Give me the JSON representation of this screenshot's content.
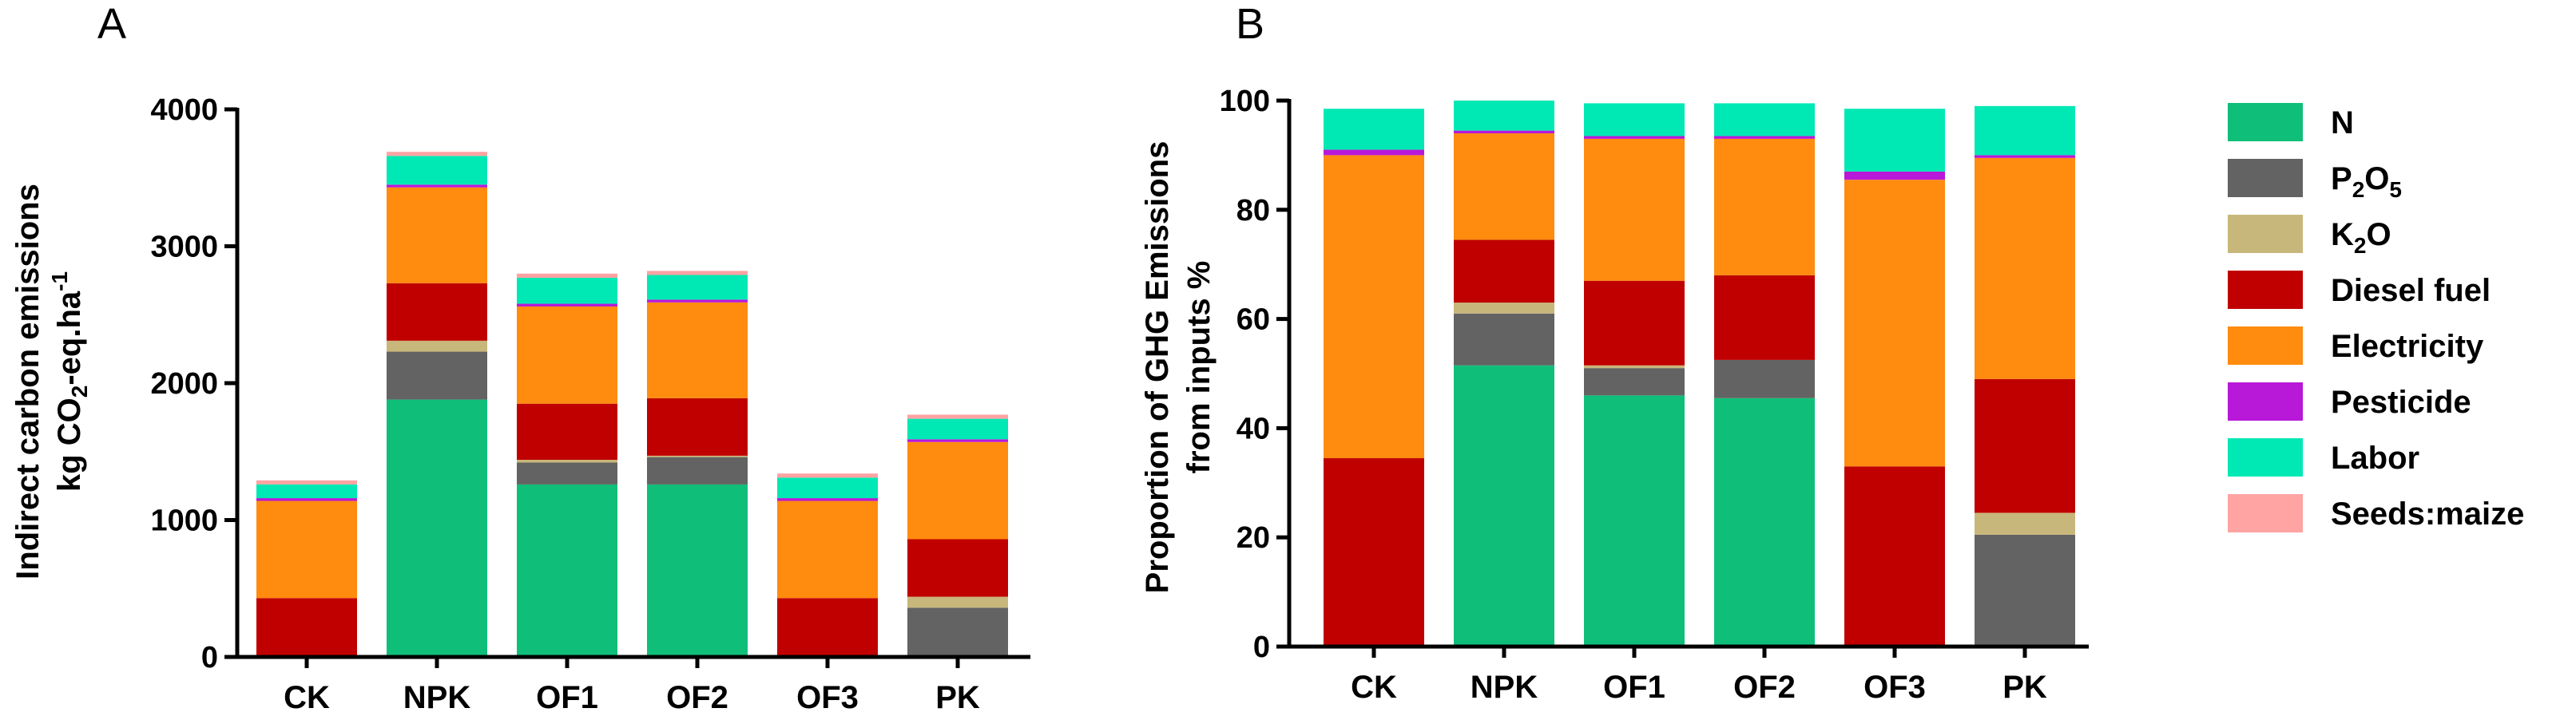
{
  "chart_data": [
    {
      "panel_label": "A",
      "type": "bar",
      "stacked": true,
      "categories": [
        "CK",
        "NPK",
        "OF1",
        "OF2",
        "OF3",
        "PK"
      ],
      "ylabel_line1": "Indirect carbon emissions",
      "ylabel_line2_main": "kg CO",
      "ylabel_line2_sub": "2",
      "ylabel_line2_rest": "-eq.ha",
      "ylabel_line2_sup": "-1",
      "ylim": [
        0,
        4000
      ],
      "yticks": [
        0,
        1000,
        2000,
        3000,
        4000
      ],
      "series": [
        {
          "name": "N",
          "values": [
            0,
            1880,
            1260,
            1260,
            0,
            0
          ]
        },
        {
          "name": "P2O5",
          "values": [
            0,
            350,
            160,
            200,
            0,
            360
          ]
        },
        {
          "name": "K2O",
          "values": [
            0,
            80,
            20,
            10,
            0,
            80
          ]
        },
        {
          "name": "Diesel fuel",
          "values": [
            430,
            420,
            410,
            420,
            430,
            420
          ]
        },
        {
          "name": "Electricity",
          "values": [
            710,
            700,
            710,
            700,
            710,
            710
          ]
        },
        {
          "name": "Pesticide",
          "values": [
            20,
            20,
            20,
            20,
            20,
            20
          ]
        },
        {
          "name": "Labor",
          "values": [
            100,
            210,
            190,
            180,
            150,
            150
          ]
        },
        {
          "name": "Seeds:maize",
          "values": [
            30,
            30,
            30,
            30,
            30,
            30
          ]
        }
      ]
    },
    {
      "panel_label": "B",
      "type": "bar",
      "stacked": true,
      "categories": [
        "CK",
        "NPK",
        "OF1",
        "OF2",
        "OF3",
        "PK"
      ],
      "ylabel_line1": "Proportion of  GHG Emissions",
      "ylabel_line2": "from inputs  %",
      "ylim": [
        0,
        100
      ],
      "yticks": [
        0,
        20,
        40,
        60,
        80,
        100
      ],
      "series": [
        {
          "name": "N",
          "values": [
            0,
            51.5,
            46,
            45.5,
            0,
            0
          ]
        },
        {
          "name": "P2O5",
          "values": [
            0,
            9.5,
            5,
            7,
            0,
            20.5
          ]
        },
        {
          "name": "K2O",
          "values": [
            0,
            2,
            0.5,
            0,
            0,
            4
          ]
        },
        {
          "name": "Diesel fuel",
          "values": [
            34.5,
            11.5,
            15.5,
            15.5,
            33,
            24.5
          ]
        },
        {
          "name": "Electricity",
          "values": [
            55.5,
            19.5,
            26,
            25,
            52.5,
            40.5
          ]
        },
        {
          "name": "Pesticide",
          "values": [
            1,
            0.5,
            0.5,
            0.5,
            1.5,
            0.5
          ]
        },
        {
          "name": "Labor",
          "values": [
            7.5,
            5.5,
            6,
            6,
            11.5,
            9
          ]
        },
        {
          "name": "Seeds:maize",
          "values": [
            0,
            0,
            0,
            0,
            0,
            0
          ]
        }
      ]
    }
  ],
  "legend": [
    {
      "key": "N",
      "main": "N",
      "sub": ""
    },
    {
      "key": "P2O5",
      "main": "P",
      "sub": "2",
      "main2": "O",
      "sub2": "5"
    },
    {
      "key": "K2O",
      "main": "K",
      "sub": "2",
      "main2": "O",
      "sub2": ""
    },
    {
      "key": "Diesel fuel",
      "main": "Diesel fuel",
      "sub": ""
    },
    {
      "key": "Electricity",
      "main": "Electricity",
      "sub": ""
    },
    {
      "key": "Pesticide",
      "main": "Pesticide",
      "sub": ""
    },
    {
      "key": "Labor",
      "main": "Labor",
      "sub": ""
    },
    {
      "key": "Seeds:maize",
      "main": "Seeds:maize",
      "sub": ""
    }
  ],
  "colors": {
    "N": "#0fbf79",
    "P2O5": "#636363",
    "K2O": "#c8b77a",
    "Diesel fuel": "#c00000",
    "Electricity": "#ff8b0f",
    "Pesticide": "#b818d8",
    "Labor": "#00e8b4",
    "Seeds:maize": "#ffa3a3"
  }
}
